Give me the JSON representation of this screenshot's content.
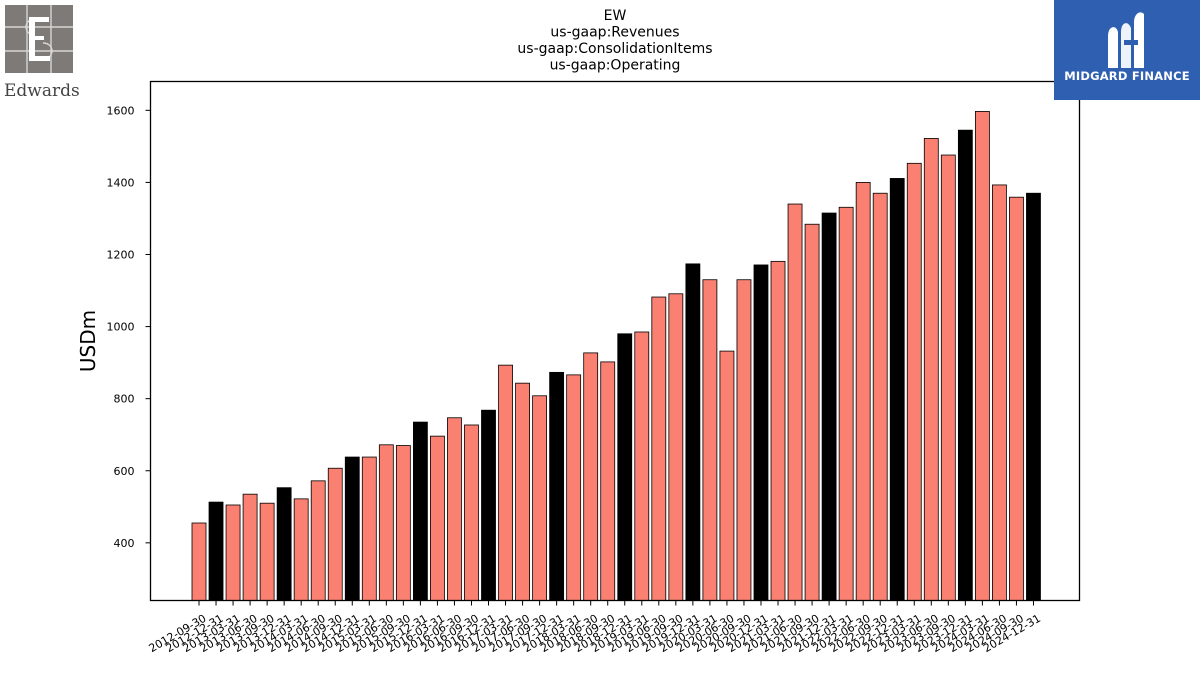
{
  "logos": {
    "left_name": "Edwards",
    "right_name": "MIDGARD FINANCE"
  },
  "chart_data": {
    "type": "bar",
    "title_lines": [
      "EW",
      "us-gaap:Revenues",
      "us-gaap:ConsolidationItems",
      "us-gaap:Operating"
    ],
    "xlabel": "",
    "ylabel": "USDm",
    "ylim": [
      240,
      1680
    ],
    "yticks": [
      400,
      600,
      800,
      1000,
      1200,
      1400,
      1600
    ],
    "grid": false,
    "colors": {
      "quarter": "#fa8072",
      "year_end": "#000000",
      "edge": "#000000"
    },
    "categories": [
      "2012-09-30",
      "2012-12-31",
      "2013-03-31",
      "2013-06-30",
      "2013-09-30",
      "2013-12-31",
      "2014-03-31",
      "2014-06-30",
      "2014-09-30",
      "2014-12-31",
      "2015-03-31",
      "2015-06-30",
      "2015-09-30",
      "2015-12-31",
      "2016-03-31",
      "2016-06-30",
      "2016-09-30",
      "2016-12-31",
      "2017-03-31",
      "2017-06-30",
      "2017-09-30",
      "2017-12-31",
      "2018-03-31",
      "2018-06-30",
      "2018-09-30",
      "2018-12-31",
      "2019-03-31",
      "2019-06-30",
      "2019-09-30",
      "2019-12-31",
      "2020-03-31",
      "2020-06-30",
      "2020-09-30",
      "2020-12-31",
      "2021-03-31",
      "2021-06-30",
      "2021-09-30",
      "2021-12-31",
      "2022-03-31",
      "2022-06-30",
      "2022-09-30",
      "2022-12-31",
      "2023-03-31",
      "2023-06-30",
      "2023-09-30",
      "2023-12-31",
      "2024-03-31",
      "2024-06-30",
      "2024-09-30",
      "2024-12-31"
    ],
    "values": [
      455,
      513,
      505,
      535,
      510,
      553,
      522,
      572,
      607,
      638,
      638,
      672,
      670,
      735,
      696,
      747,
      727,
      768,
      893,
      843,
      808,
      873,
      866,
      927,
      902,
      980,
      985,
      1082,
      1091,
      1174,
      1130,
      932,
      1130,
      1171,
      1181,
      1340,
      1284,
      1315,
      1331,
      1400,
      1370,
      1411,
      1453,
      1522,
      1476,
      1545,
      1597,
      1393,
      1359,
      1370
    ],
    "year_end_flags": [
      false,
      true,
      false,
      false,
      false,
      true,
      false,
      false,
      false,
      true,
      false,
      false,
      false,
      true,
      false,
      false,
      false,
      true,
      false,
      false,
      false,
      true,
      false,
      false,
      false,
      true,
      false,
      false,
      false,
      true,
      false,
      false,
      false,
      true,
      false,
      false,
      false,
      true,
      false,
      false,
      false,
      true,
      false,
      false,
      false,
      true,
      false,
      false,
      false,
      true
    ]
  }
}
